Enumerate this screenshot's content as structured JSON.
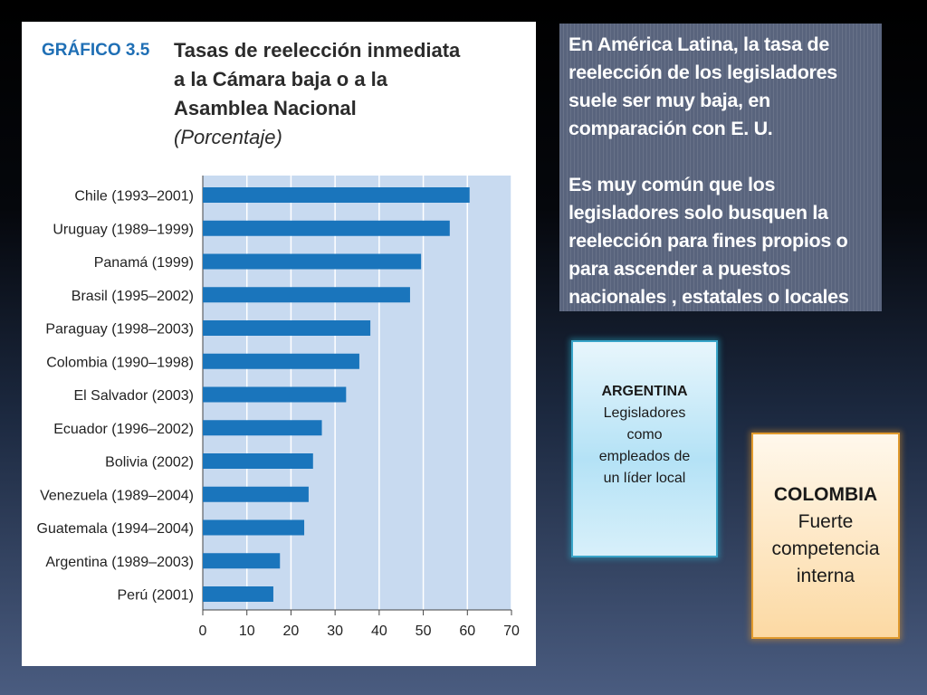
{
  "chart_panel": {
    "label": "GRÁFICO 3.5",
    "title_lines": [
      "Tasas de reelección inmediata",
      "a la Cámara baja o a la",
      "Asamblea Nacional"
    ],
    "subtitle": "(Porcentaje)"
  },
  "chart_data": {
    "type": "bar",
    "orientation": "horizontal",
    "title": "Tasas de reelección inmediata a la Cámara baja o a la Asamblea Nacional",
    "subtitle": "(Porcentaje)",
    "categories": [
      "Chile (1993–2001)",
      "Uruguay (1989–1999)",
      "Panamá (1999)",
      "Brasil (1995–2002)",
      "Paraguay (1998–2003)",
      "Colombia (1990–1998)",
      "El Salvador (2003)",
      "Ecuador (1996–2002)",
      "Bolivia (2002)",
      "Venezuela (1989–2004)",
      "Guatemala (1994–2004)",
      "Argentina (1989–2003)",
      "Perú (2001)"
    ],
    "values": [
      60.5,
      56,
      49.5,
      47,
      38,
      35.5,
      32.5,
      27,
      25,
      24,
      23,
      17.5,
      16
    ],
    "xlim": [
      0,
      70
    ],
    "xticks": [
      0,
      10,
      20,
      30,
      40,
      50,
      60,
      70
    ],
    "xlabel": "",
    "ylabel": "",
    "grid": true,
    "colors": {
      "bar": "#1a75bc",
      "plot_bg": "#c8daf0",
      "grid": "#ffffff"
    }
  },
  "info_box": {
    "paragraph1": "En América Latina, la tasa de reelección de los legisladores suele ser muy baja, en comparación con E. U.",
    "paragraph2": "Es muy común que los legisladores solo busquen la reelección para fines propios o para ascender a puestos nacionales , estatales o locales"
  },
  "argentina_box": {
    "title": "ARGENTINA",
    "lines": [
      "Legisladores",
      "como",
      "empleados de",
      "un líder local"
    ]
  },
  "colombia_box": {
    "title": "COLOMBIA",
    "lines": [
      "Fuerte",
      "competencia",
      "interna"
    ]
  }
}
